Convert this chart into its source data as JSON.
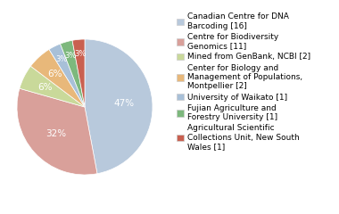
{
  "labels": [
    "Canadian Centre for DNA\nBarcoding [16]",
    "Centre for Biodiversity\nGenomics [11]",
    "Mined from GenBank, NCBI [2]",
    "Center for Biology and\nManagement of Populations,\nMontpellier [2]",
    "University of Waikato [1]",
    "Fujian Agriculture and\nForestry University [1]",
    "Agricultural Scientific\nCollections Unit, New South\nWales [1]"
  ],
  "values": [
    16,
    11,
    2,
    2,
    1,
    1,
    1
  ],
  "colors": [
    "#b8c9dc",
    "#d9a09a",
    "#c9d99a",
    "#e8b87a",
    "#a8c0d8",
    "#7db87d",
    "#c96050"
  ],
  "text_color": "#ffffff",
  "legend_fontsize": 6.5,
  "pct_fontsize": 7.5
}
